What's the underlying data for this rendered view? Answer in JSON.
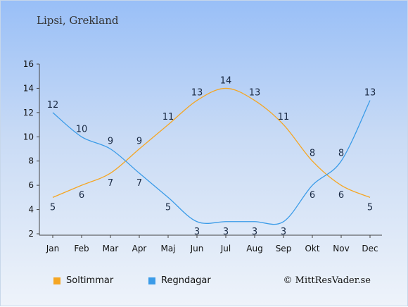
{
  "title": "Lipsi, Grekland",
  "credit": "© MittResVader.se",
  "chart_data": {
    "type": "line",
    "categories": [
      "Jan",
      "Feb",
      "Mar",
      "Apr",
      "Maj",
      "Jun",
      "Jul",
      "Aug",
      "Sep",
      "Okt",
      "Nov",
      "Dec"
    ],
    "series": [
      {
        "name": "Soltimmar",
        "color": "#f5a623",
        "values": [
          5,
          6,
          7,
          9,
          11,
          13,
          14,
          13,
          11,
          8,
          6,
          5
        ]
      },
      {
        "name": "Regndagar",
        "color": "#3a9be8",
        "values": [
          12,
          10,
          9,
          7,
          5,
          3,
          3,
          3,
          3,
          6,
          8,
          13
        ]
      }
    ],
    "yticks": [
      2,
      4,
      6,
      8,
      10,
      12,
      14,
      16
    ],
    "ylim": [
      2,
      16
    ],
    "grid": false,
    "legend_position": "bottom-left"
  }
}
